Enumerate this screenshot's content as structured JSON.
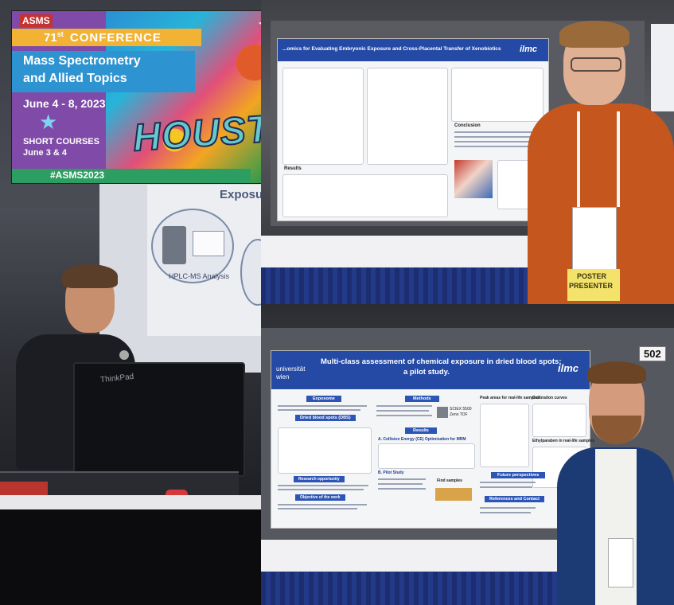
{
  "banner": {
    "logo": "ASMS",
    "edition": "71",
    "edition_suffix": "st",
    "conference_word": "CONFERENCE",
    "title_line1": "Mass Spectrometry",
    "title_line2": "and Allied Topics",
    "dates": "June 4 - 8, 2023",
    "short_courses_line1": "SHORT COURSES",
    "short_courses_line2": "June 3 & 4",
    "hashtag": "#ASMS2023",
    "city_art": "HOUSTON"
  },
  "speaker_photo": {
    "slide_label": "HPLC-MS Analysis",
    "slide_title_fragment": "Exposu",
    "laptop_brand": "ThinkPad"
  },
  "poster_top": {
    "title": "...omics for Evaluating Embryonic Exposure and Cross-Placental Transfer of Xenobiotics",
    "logo": "ilmc",
    "conclusion_heading": "Conclusion",
    "results_heading": "Results",
    "badge_label_line1": "POSTER",
    "badge_label_line2": "PRESENTER"
  },
  "poster_bottom": {
    "board_number": "502",
    "title_line1": "Multi-class assessment of chemical exposure in dried blood spots:",
    "title_line2": "a pilot study.",
    "university_line1": "universität",
    "university_line2": "wien",
    "logo": "ilmc",
    "exposome_heading": "Exposome",
    "dbs_heading": "Dried blood spots (DBS)",
    "methods_heading": "Methods",
    "results_heading": "Results",
    "section_a": "A. Collision Energy (CE) Optimization for MRM",
    "section_b": "B. Pilot Study",
    "instrument": "SCIEX 5500",
    "instrument_sub": "Zeno TOF",
    "future_heading": "Future perspectives",
    "references_heading": "References and Contact",
    "peak_areas_heading": "Peak areas for real-life samples",
    "calibration_heading": "Calibration curves",
    "ethylparaben_heading": "Ethylparaben in real-life samples",
    "research_heading": "Research opportunity",
    "objective_heading": "Objective of the work",
    "find_samples_heading": "Find samples"
  },
  "colors": {
    "banner_purple": "#7f4aa8",
    "banner_orange": "#f2b233",
    "banner_blue": "#2e94d1",
    "banner_green": "#2d9e62",
    "poster_blue": "#254aa5",
    "badge_yellow": "#f3e36b",
    "shirt_orange": "#c4561e",
    "jacket_navy": "#1c3b74",
    "table_skirt": "#1c2e70"
  }
}
